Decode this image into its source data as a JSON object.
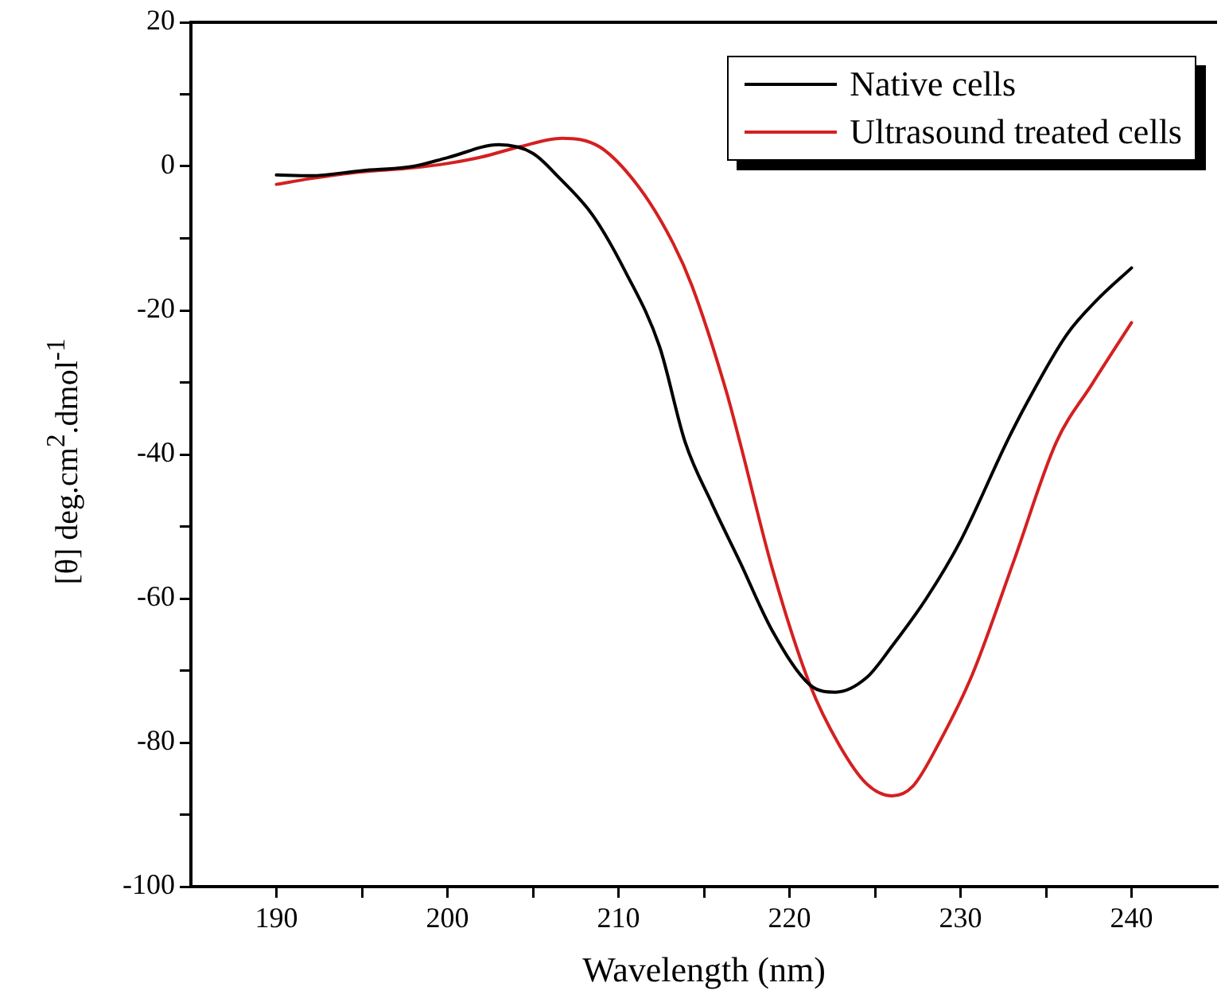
{
  "chart_data": {
    "type": "line",
    "xlabel": "Wavelength (nm)",
    "ylabel": "[θ] deg.cm$^{2}$.dmol$^{-1}$",
    "xlim": [
      185,
      245
    ],
    "ylim": [
      -100,
      20
    ],
    "xticks": [
      190,
      {
        "value": 195,
        "label": null
      },
      200,
      {
        "value": 205,
        "label": null
      },
      210,
      {
        "value": 215,
        "label": null
      },
      220,
      {
        "value": 225,
        "label": null
      },
      230,
      {
        "value": 235,
        "label": null
      },
      240
    ],
    "yticks": [
      -100,
      {
        "value": -90,
        "label": null
      },
      -80,
      {
        "value": -70,
        "label": null
      },
      -60,
      {
        "value": -50,
        "label": null
      },
      -40,
      {
        "value": -30,
        "label": null
      },
      -20,
      {
        "value": -10,
        "label": null
      },
      0,
      {
        "value": 10,
        "label": null
      },
      20
    ],
    "grid": false,
    "legend": "top right",
    "marker": "none",
    "line_style": "solid",
    "series": [
      {
        "name": "Native cells",
        "color": "#000000",
        "x": [
          190,
          192,
          195,
          198,
          200,
          203,
          205,
          206.5,
          208.5,
          210.4,
          212.4,
          213.9,
          215.5,
          217.1,
          219,
          221.2,
          222.7,
          224.5,
          226,
          228,
          230,
          232.7,
          233.8,
          236.2,
          238,
          240
        ],
        "values": [
          -1.2,
          -1.3,
          -0.6,
          0,
          1.2,
          3.0,
          1.8,
          -1.5,
          -6.8,
          -14.6,
          -25,
          -38.3,
          -47,
          -54.9,
          -64.5,
          -72,
          -73,
          -71,
          -66.6,
          -60,
          -52,
          -38.3,
          -33.2,
          -23.4,
          -18.5,
          -14.1
        ]
      },
      {
        "name": "Ultrasound treated cells",
        "color": "#d42020",
        "x": [
          190,
          192,
          194.8,
          198,
          200,
          202,
          204.2,
          206.7,
          208.9,
          211.2,
          213.2,
          214.3,
          216.3,
          217.1,
          219,
          221.2,
          222.9,
          224.5,
          226,
          227.2,
          228.8,
          230.7,
          233.1,
          235.6,
          237.7,
          240
        ],
        "values": [
          -2.5,
          -1.7,
          -0.8,
          -0.2,
          0.4,
          1.3,
          2.7,
          3.9,
          2.7,
          -2.9,
          -10.7,
          -16.6,
          -31.2,
          -38.3,
          -55.9,
          -72,
          -80.3,
          -85.7,
          -87.4,
          -86.1,
          -79.8,
          -70.5,
          -54.9,
          -38.3,
          -30.2,
          -21.7
        ]
      }
    ]
  }
}
